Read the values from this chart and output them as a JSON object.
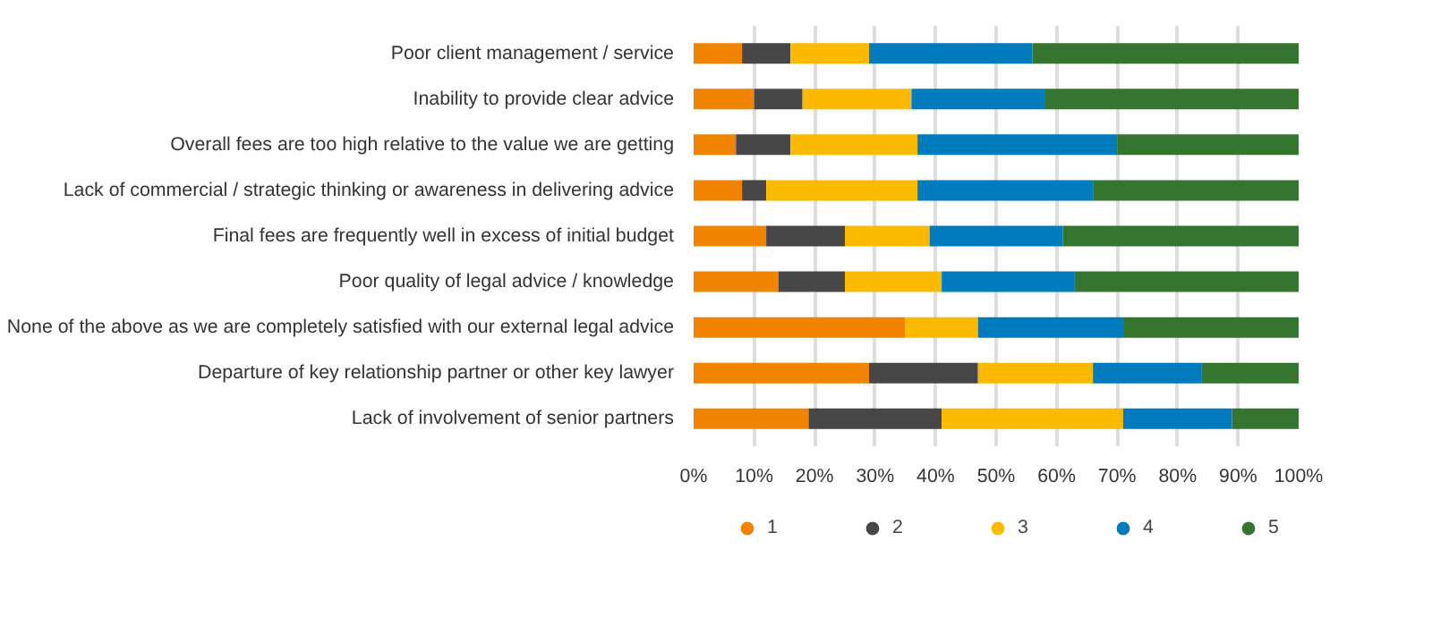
{
  "chart_data": {
    "type": "bar",
    "orientation": "horizontal",
    "stacked": true,
    "categories": [
      "Poor client management / service",
      "Inability to provide clear advice",
      "Overall fees are too high relative to the value we are getting",
      "Lack of commercial / strategic thinking or awareness in delivering advice",
      "Final fees are frequently well in excess of initial budget",
      "Poor quality of legal advice / knowledge",
      "None of the above as we are completely satisfied with our external legal advice",
      "Departure of key relationship partner or other key lawyer",
      "Lack of involvement of senior partners"
    ],
    "series": [
      {
        "name": "1",
        "color": "#f08300",
        "values": [
          8,
          10,
          7,
          8,
          12,
          14,
          35,
          29,
          19
        ]
      },
      {
        "name": "2",
        "color": "#474747",
        "values": [
          8,
          8,
          9,
          4,
          13,
          11,
          0,
          18,
          22
        ]
      },
      {
        "name": "3",
        "color": "#fbb900",
        "values": [
          13,
          18,
          21,
          25,
          14,
          16,
          12,
          19,
          30
        ]
      },
      {
        "name": "4",
        "color": "#007bbd",
        "values": [
          27,
          22,
          33,
          29,
          22,
          22,
          24,
          18,
          18
        ]
      },
      {
        "name": "5",
        "color": "#367530",
        "values": [
          44,
          42,
          30,
          34,
          39,
          37,
          29,
          16,
          11
        ]
      }
    ],
    "xlim": [
      0,
      100
    ],
    "xticks": [
      {
        "value": 0,
        "label": "0%"
      },
      {
        "value": 10,
        "label": "10%"
      },
      {
        "value": 20,
        "label": "20%"
      },
      {
        "value": 30,
        "label": "30%"
      },
      {
        "value": 40,
        "label": "40%"
      },
      {
        "value": 50,
        "label": "50%"
      },
      {
        "value": 60,
        "label": "60%"
      },
      {
        "value": 70,
        "label": "70%"
      },
      {
        "value": 80,
        "label": "80%"
      },
      {
        "value": 90,
        "label": "90%"
      },
      {
        "value": 100,
        "label": "100%"
      }
    ],
    "grid": "x",
    "legend": "bottom"
  }
}
